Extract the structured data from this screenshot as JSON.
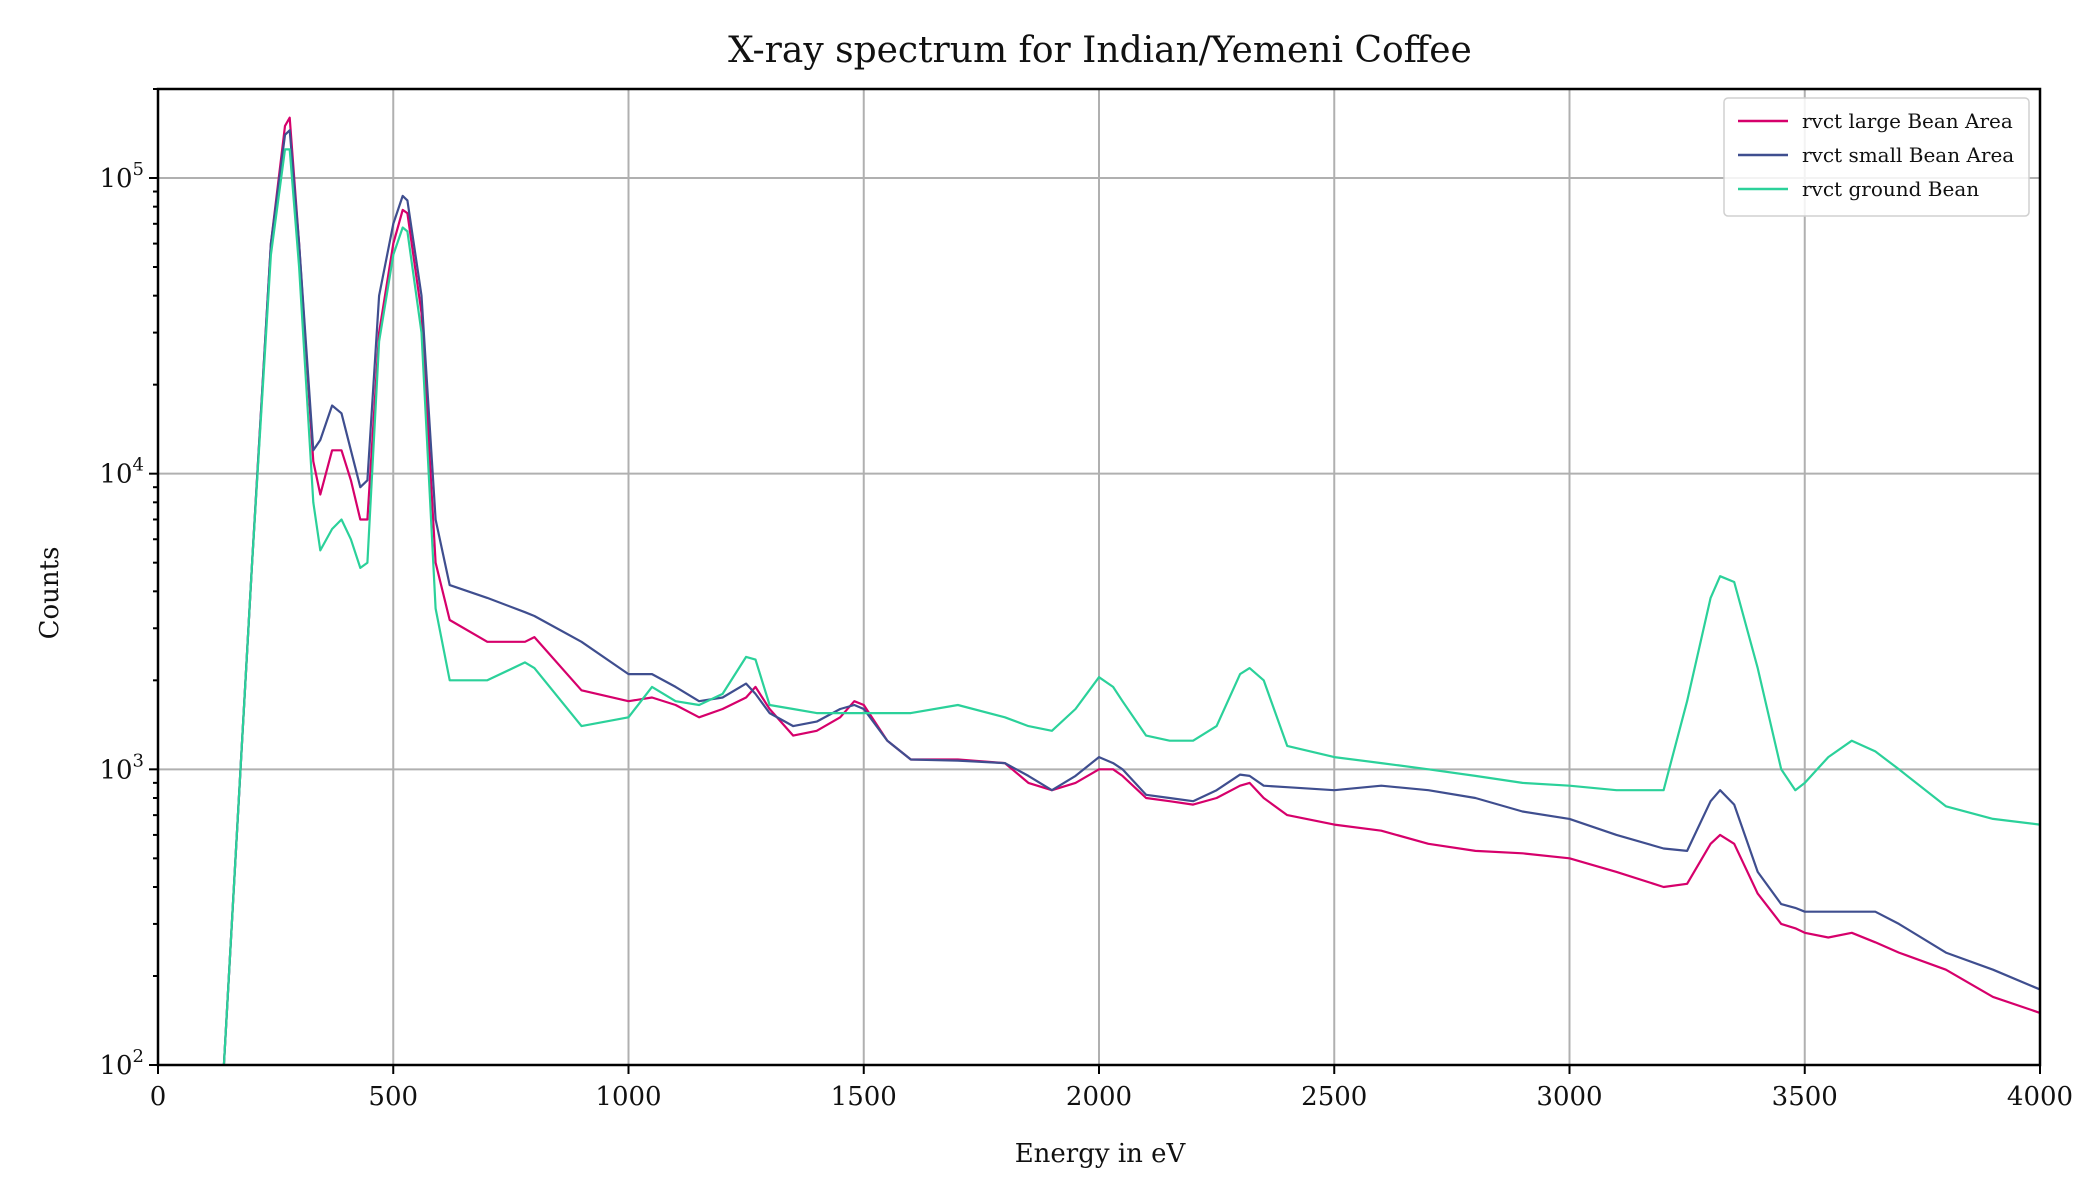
{
  "chart_data": {
    "type": "line",
    "title": "X-ray spectrum for Indian/Yemeni Coffee",
    "xlabel": "Energy in eV",
    "ylabel": "Counts",
    "xlim": [
      0,
      4000
    ],
    "ylim": [
      100,
      200000
    ],
    "yscale": "log",
    "grid": true,
    "legend_position": "top-right",
    "x_ticks": [
      0,
      500,
      1000,
      1500,
      2000,
      2500,
      3000,
      3500,
      4000
    ],
    "x_tick_labels": [
      "0",
      "500",
      "1000",
      "1500",
      "2000",
      "2500",
      "3000",
      "3500",
      "4000"
    ],
    "y_ticks": [
      {
        "value": 100,
        "base": "10",
        "exp": "2"
      },
      {
        "value": 1000,
        "base": "10",
        "exp": "3"
      },
      {
        "value": 10000,
        "base": "10",
        "exp": "4"
      },
      {
        "value": 100000,
        "base": "10",
        "exp": "5"
      }
    ],
    "x": [
      140,
      200,
      240,
      270,
      280,
      300,
      330,
      345,
      370,
      390,
      410,
      430,
      445,
      470,
      500,
      520,
      530,
      560,
      590,
      620,
      700,
      780,
      800,
      900,
      1000,
      1050,
      1100,
      1150,
      1200,
      1250,
      1270,
      1300,
      1350,
      1400,
      1450,
      1480,
      1500,
      1550,
      1600,
      1700,
      1800,
      1850,
      1900,
      1950,
      2000,
      2030,
      2050,
      2100,
      2150,
      2200,
      2250,
      2300,
      2320,
      2350,
      2400,
      2500,
      2600,
      2700,
      2800,
      2900,
      3000,
      3100,
      3200,
      3250,
      3300,
      3320,
      3350,
      3400,
      3450,
      3480,
      3500,
      3550,
      3600,
      3650,
      3700,
      3800,
      3900,
      4000
    ],
    "series": [
      {
        "name": "rvct large Bean Area",
        "color": "#d6006b",
        "values": [
          100,
          5000,
          60000,
          150000,
          160000,
          60000,
          11000,
          8500,
          12000,
          12000,
          9500,
          7000,
          7000,
          30000,
          60000,
          78000,
          76000,
          35000,
          5000,
          3200,
          2700,
          2700,
          2800,
          1850,
          1700,
          1750,
          1650,
          1500,
          1600,
          1750,
          1900,
          1600,
          1300,
          1350,
          1500,
          1700,
          1650,
          1250,
          1080,
          1080,
          1050,
          900,
          850,
          900,
          1000,
          1000,
          950,
          800,
          780,
          760,
          800,
          880,
          900,
          800,
          700,
          650,
          620,
          560,
          530,
          520,
          500,
          450,
          400,
          410,
          560,
          600,
          560,
          380,
          300,
          290,
          280,
          270,
          280,
          260,
          240,
          210,
          170,
          150
        ]
      },
      {
        "name": "rvct small Bean Area",
        "color": "#3f4e8f",
        "values": [
          100,
          5000,
          60000,
          140000,
          145000,
          60000,
          12000,
          13000,
          17000,
          16000,
          12000,
          9000,
          9500,
          40000,
          70000,
          87000,
          84000,
          40000,
          7000,
          4200,
          3800,
          3400,
          3300,
          2700,
          2100,
          2100,
          1900,
          1700,
          1750,
          1950,
          1800,
          1550,
          1400,
          1450,
          1600,
          1650,
          1600,
          1250,
          1080,
          1070,
          1050,
          950,
          850,
          950,
          1100,
          1050,
          1000,
          820,
          800,
          780,
          850,
          960,
          950,
          880,
          870,
          850,
          880,
          850,
          800,
          720,
          680,
          600,
          540,
          530,
          780,
          850,
          760,
          450,
          350,
          340,
          330,
          330,
          330,
          330,
          300,
          240,
          210,
          180
        ]
      },
      {
        "name": "rvct ground Bean",
        "color": "#2bd19a",
        "values": [
          100,
          5000,
          55000,
          125000,
          125000,
          50000,
          8000,
          5500,
          6500,
          7000,
          6000,
          4800,
          5000,
          28000,
          55000,
          68000,
          66000,
          30000,
          3500,
          2000,
          2000,
          2300,
          2200,
          1400,
          1500,
          1900,
          1700,
          1650,
          1800,
          2400,
          2350,
          1650,
          1600,
          1550,
          1550,
          1550,
          1550,
          1550,
          1550,
          1650,
          1500,
          1400,
          1350,
          1600,
          2050,
          1900,
          1700,
          1300,
          1250,
          1250,
          1400,
          2100,
          2200,
          2000,
          1200,
          1100,
          1050,
          1000,
          950,
          900,
          880,
          850,
          850,
          1700,
          3800,
          4500,
          4300,
          2200,
          1000,
          850,
          900,
          1100,
          1250,
          1150,
          1000,
          750,
          680,
          650
        ]
      }
    ]
  }
}
